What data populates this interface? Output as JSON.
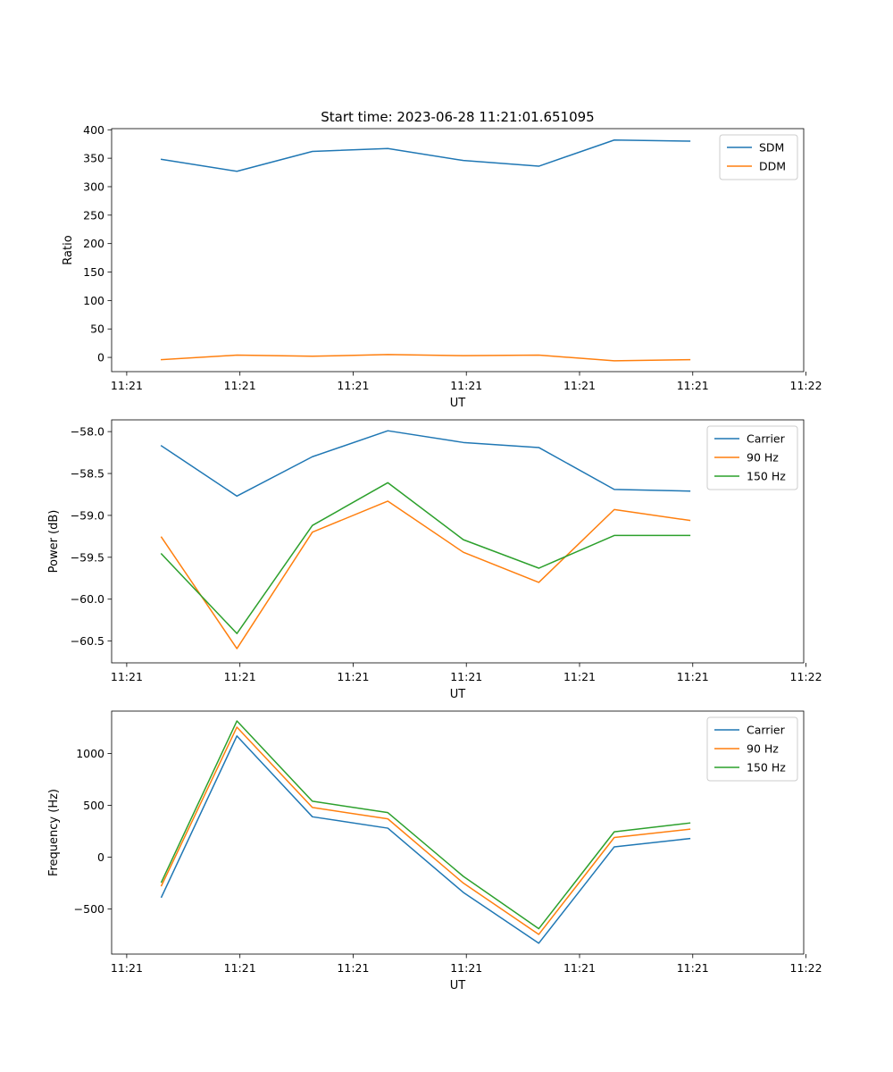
{
  "title": "Start time: 2023-06-28 11:21:01.651095",
  "colors": {
    "blue": "#1f77b4",
    "orange": "#ff7f0e",
    "green": "#2ca02c"
  },
  "chart_data": [
    {
      "type": "line",
      "title": "Start time: 2023-06-28 11:21:01.651095",
      "xlabel": "UT",
      "ylabel": "Ratio",
      "x": [
        1,
        2,
        3,
        4,
        5,
        6,
        7,
        8
      ],
      "xlim": [
        0.34,
        9.51
      ],
      "xticks": [
        0.54,
        2.04,
        3.54,
        5.04,
        6.54,
        8.04,
        9.54
      ],
      "xtick_labels": [
        "11:21",
        "11:21",
        "11:21",
        "11:21",
        "11:21",
        "11:21",
        "11:22"
      ],
      "ylim": [
        -25,
        402
      ],
      "yticks": [
        0,
        50,
        100,
        150,
        200,
        250,
        300,
        350,
        400
      ],
      "ytick_labels": [
        "0",
        "50",
        "100",
        "150",
        "200",
        "250",
        "300",
        "350",
        "400"
      ],
      "legend": "top-right",
      "grid": false,
      "series": [
        {
          "name": "SDM",
          "color": "#1f77b4",
          "values": [
            348,
            327,
            362,
            367,
            346,
            336,
            382,
            380
          ]
        },
        {
          "name": "DDM",
          "color": "#ff7f0e",
          "values": [
            -4,
            4,
            2,
            5,
            3,
            4,
            -6,
            -4
          ]
        }
      ]
    },
    {
      "type": "line",
      "title": "",
      "xlabel": "UT",
      "ylabel": "Power (dB)",
      "x": [
        1,
        2,
        3,
        4,
        5,
        6,
        7,
        8
      ],
      "xlim": [
        0.34,
        9.51
      ],
      "xticks": [
        0.54,
        2.04,
        3.54,
        5.04,
        6.54,
        8.04,
        9.54
      ],
      "xtick_labels": [
        "11:21",
        "11:21",
        "11:21",
        "11:21",
        "11:21",
        "11:21",
        "11:22"
      ],
      "ylim": [
        -60.76,
        -57.86
      ],
      "yticks": [
        -60.5,
        -60.0,
        -59.5,
        -59.0,
        -58.5,
        -58.0
      ],
      "ytick_labels": [
        "−60.5",
        "−60.0",
        "−59.5",
        "−59.0",
        "−58.5",
        "−58.0"
      ],
      "legend": "top-right",
      "grid": false,
      "series": [
        {
          "name": "Carrier",
          "color": "#1f77b4",
          "values": [
            -58.17,
            -58.77,
            -58.3,
            -57.99,
            -58.13,
            -58.19,
            -58.69,
            -58.71
          ]
        },
        {
          "name": "90 Hz",
          "color": "#ff7f0e",
          "values": [
            -59.26,
            -60.59,
            -59.2,
            -58.83,
            -59.44,
            -59.8,
            -58.93,
            -59.06
          ]
        },
        {
          "name": "150 Hz",
          "color": "#2ca02c",
          "values": [
            -59.46,
            -60.41,
            -59.12,
            -58.61,
            -59.29,
            -59.63,
            -59.24,
            -59.24
          ]
        }
      ]
    },
    {
      "type": "line",
      "title": "",
      "xlabel": "UT",
      "ylabel": "Frequency (Hz)",
      "x": [
        1,
        2,
        3,
        4,
        5,
        6,
        7,
        8
      ],
      "xlim": [
        0.34,
        9.51
      ],
      "xticks": [
        0.54,
        2.04,
        3.54,
        5.04,
        6.54,
        8.04,
        9.54
      ],
      "xtick_labels": [
        "11:21",
        "11:21",
        "11:21",
        "11:21",
        "11:21",
        "11:21",
        "11:22"
      ],
      "ylim": [
        -935,
        1410
      ],
      "yticks": [
        -500,
        0,
        500,
        1000
      ],
      "ytick_labels": [
        "−500",
        "0",
        "500",
        "1000"
      ],
      "legend": "top-right",
      "grid": false,
      "series": [
        {
          "name": "Carrier",
          "color": "#1f77b4",
          "values": [
            -385,
            1170,
            390,
            280,
            -340,
            -830,
            100,
            180
          ]
        },
        {
          "name": "90 Hz",
          "color": "#ff7f0e",
          "values": [
            -275,
            1255,
            480,
            370,
            -250,
            -745,
            190,
            270
          ]
        },
        {
          "name": "150 Hz",
          "color": "#2ca02c",
          "values": [
            -240,
            1315,
            540,
            430,
            -185,
            -690,
            245,
            330
          ]
        }
      ]
    }
  ]
}
